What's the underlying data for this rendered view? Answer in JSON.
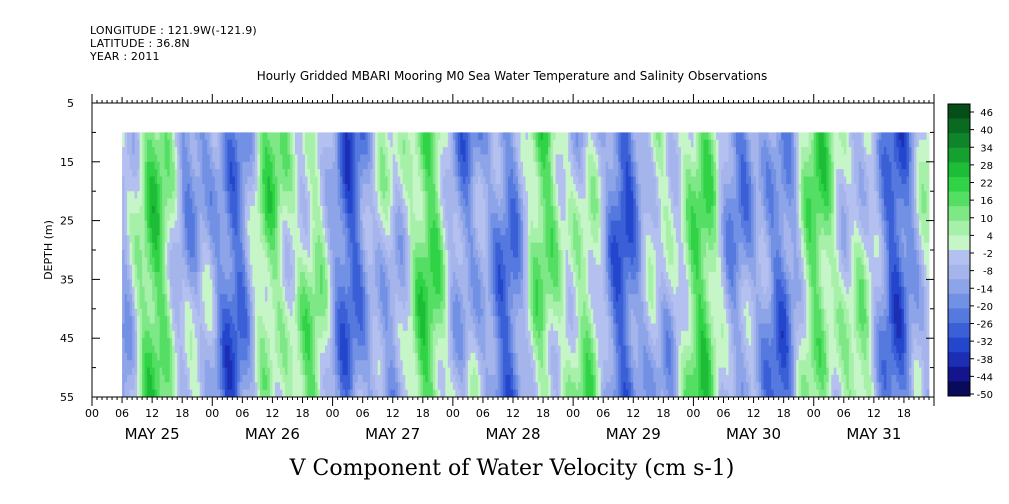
{
  "header": {
    "longitude": "LONGITUDE : 121.9W(-121.9)",
    "latitude": "LATITUDE : 36.8N",
    "year": "YEAR : 2011"
  },
  "chart_data": {
    "type": "heatmap",
    "title": "Hourly Gridded MBARI Mooring M0 Sea Water Temperature and Salinity Observations",
    "xlabel": "V Component of Water Velocity (cm s-1)",
    "ylabel": "DEPTH (m)",
    "y_axis": {
      "range": [
        5,
        55
      ],
      "inverted": true,
      "ticks": [
        5,
        15,
        25,
        35,
        45,
        55
      ],
      "data_depth_range": [
        10,
        55
      ]
    },
    "x_axis": {
      "hour_ticks": [
        "00",
        "06",
        "12",
        "18",
        "00",
        "06",
        "12",
        "18",
        "00",
        "06",
        "12",
        "18",
        "00",
        "06",
        "12",
        "18",
        "00",
        "06",
        "12",
        "18",
        "00",
        "06",
        "12",
        "18",
        "00",
        "06",
        "12",
        "18"
      ],
      "day_labels": [
        "MAY 25",
        "MAY 26",
        "MAY 27",
        "MAY 28",
        "MAY 29",
        "MAY 30",
        "MAY 31"
      ],
      "data_start": "MAY 25 06",
      "data_end": "MAY 31 23"
    },
    "colorbar": {
      "range": [
        -50,
        50
      ],
      "labels": [
        46,
        40,
        34,
        28,
        22,
        16,
        10,
        4,
        -2,
        -8,
        -14,
        -20,
        -26,
        -32,
        -38,
        -44,
        -50
      ],
      "colors": [
        "#0a0a5a",
        "#14148c",
        "#1c2eb4",
        "#2446cc",
        "#3a5fd6",
        "#5579de",
        "#7290e4",
        "#8da4e8",
        "#a5b5ec",
        "#b4c0f0",
        "#c6f5c8",
        "#a6f0aa",
        "#7ee886",
        "#55de64",
        "#30d246",
        "#1ebd38",
        "#16a030",
        "#10842a",
        "#0a6a22",
        "#064e18"
      ]
    },
    "velocity_profile_columns": [
      {
        "time": "MAY 25 06",
        "value_sign": "negative"
      },
      {
        "time": "MAY 25 15",
        "value_sign": "positive"
      },
      {
        "time": "MAY 26 15",
        "value_sign": "positive"
      },
      {
        "time": "MAY 27 09",
        "value_sign": "positive"
      },
      {
        "time": "MAY 28 12",
        "value_sign": "negative"
      },
      {
        "time": "MAY 29 03",
        "value_sign": "negative"
      },
      {
        "time": "MAY 30 14",
        "value_sign": "positive"
      },
      {
        "time": "MAY 31 12",
        "value_sign": "positive"
      }
    ]
  }
}
